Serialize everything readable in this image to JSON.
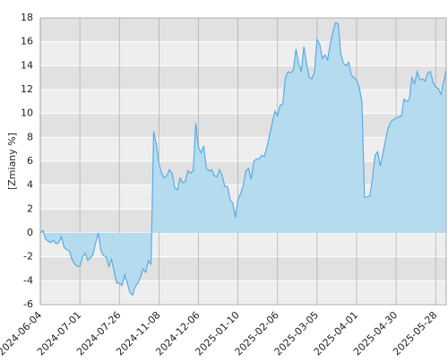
{
  "chart_data": {
    "type": "area",
    "y_label": "[Zmiany %]",
    "ylim": [
      -6,
      18
    ],
    "yticks": [
      -6,
      -4,
      -2,
      0,
      2,
      4,
      6,
      8,
      10,
      12,
      14,
      16,
      18
    ],
    "grid": true,
    "band_colors": [
      "#e1e1e1",
      "#eeeeee"
    ],
    "line_color": "#5aaae6",
    "area_color": "#b5dcee",
    "categories": [
      "2024-06-04",
      null,
      null,
      null,
      null,
      null,
      null,
      null,
      null,
      null,
      null,
      null,
      null,
      null,
      null,
      "2024-07-01",
      null,
      null,
      null,
      null,
      null,
      null,
      null,
      null,
      null,
      null,
      null,
      null,
      null,
      null,
      "2024-07-26",
      null,
      null,
      null,
      null,
      null,
      null,
      null,
      null,
      null,
      null,
      null,
      null,
      null,
      null,
      "2024-11-08",
      null,
      null,
      null,
      null,
      null,
      null,
      null,
      null,
      null,
      null,
      null,
      null,
      null,
      null,
      "2024-12-06",
      null,
      null,
      null,
      null,
      null,
      null,
      null,
      null,
      null,
      null,
      null,
      null,
      null,
      null,
      "2025-01-10",
      null,
      null,
      null,
      null,
      null,
      null,
      null,
      null,
      null,
      null,
      null,
      null,
      null,
      null,
      "2025-02-06",
      null,
      null,
      null,
      null,
      null,
      null,
      null,
      null,
      null,
      null,
      null,
      null,
      null,
      null,
      "2025-03-05",
      null,
      null,
      null,
      null,
      null,
      null,
      null,
      null,
      null,
      null,
      null,
      null,
      null,
      null,
      "2025-04-01",
      null,
      null,
      null,
      null,
      null,
      null,
      null,
      null,
      null,
      null,
      null,
      null,
      null,
      null,
      "2025-04-30",
      null,
      null,
      null,
      null,
      null,
      null,
      null,
      null,
      null,
      null,
      null,
      null,
      null,
      null,
      "2025-05-28",
      null,
      null,
      null,
      null
    ],
    "series": [
      {
        "values": [
          0,
          0.2,
          -0.5,
          -0.7,
          -0.8,
          -0.6,
          -0.9,
          -0.8,
          -0.3,
          -1.2,
          -1.4,
          -1.5,
          -2.2,
          -2.6,
          -2.8,
          -2.8,
          -2.0,
          -1.7,
          -2.3,
          -2.1,
          -1.8,
          -0.8,
          0,
          -1.5,
          -1.9,
          -2.0,
          -2.8,
          -2.2,
          -3.2,
          -4.2,
          -4.2,
          -4.4,
          -3.5,
          -4.2,
          -5.0,
          -5.2,
          -4.5,
          -4.2,
          -3.7,
          -3.0,
          -3.3,
          -2.3,
          -2.6,
          8.5,
          7.5,
          5.8,
          5.0,
          4.6,
          4.8,
          5.3,
          5.0,
          3.8,
          3.6,
          4.6,
          4.2,
          4.3,
          5.2,
          5.0,
          5.2,
          9.2,
          7.2,
          6.7,
          7.3,
          5.4,
          5.2,
          5.3,
          4.8,
          4.7,
          5.3,
          4.8,
          3.9,
          3.9,
          2.8,
          2.5,
          1.3,
          2.8,
          3.3,
          4.0,
          5.2,
          5.4,
          4.5,
          6.0,
          6.2,
          6.2,
          6.5,
          6.4,
          7.2,
          8.2,
          9.2,
          10.2,
          9.8,
          10.7,
          10.8,
          13.0,
          13.5,
          13.4,
          13.6,
          15.4,
          14.2,
          13.5,
          15.6,
          14.2,
          13.0,
          12.9,
          13.4,
          16.2,
          15.8,
          14.6,
          14.9,
          14.5,
          15.8,
          16.8,
          17.6,
          17.5,
          15.0,
          14.2,
          14.0,
          14.3,
          13.2,
          13.0,
          12.8,
          12.2,
          11.0,
          3.0,
          3.0,
          3.1,
          4.5,
          6.5,
          6.8,
          5.6,
          6.7,
          7.8,
          8.8,
          9.3,
          9.5,
          9.6,
          9.7,
          9.8,
          11.2,
          11.0,
          11.2,
          13.0,
          12.5,
          13.5,
          12.8,
          12.9,
          12.7,
          13.4,
          13.5,
          12.6,
          12.2,
          12.1,
          11.6,
          12.6,
          13.6
        ]
      }
    ]
  }
}
